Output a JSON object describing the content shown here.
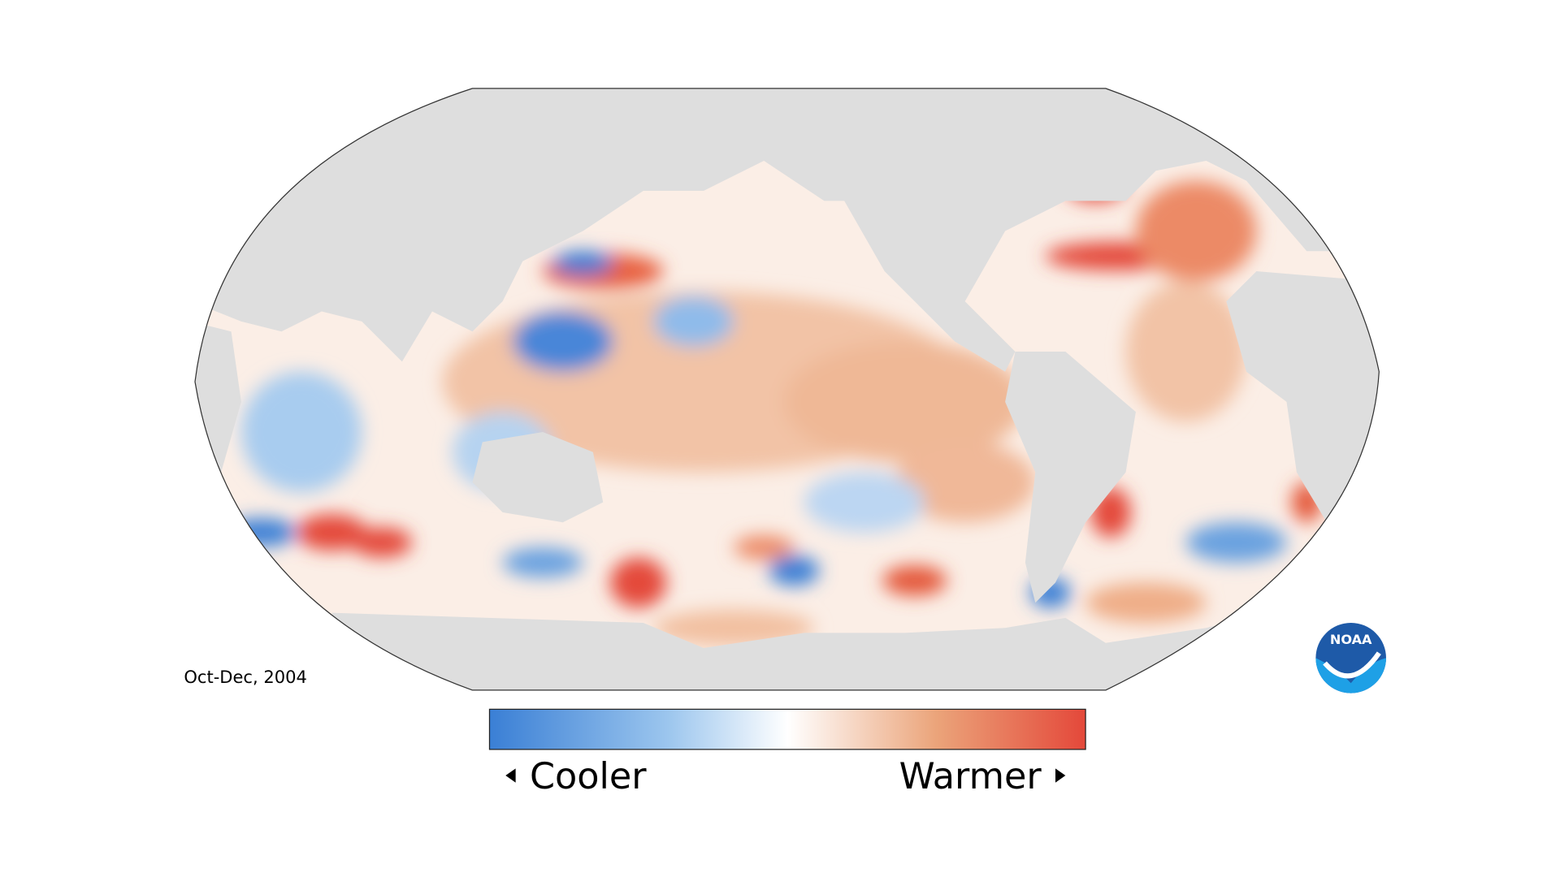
{
  "date_label": "Oct-Dec, 2004",
  "legend": {
    "low": "Cooler",
    "high": "Warmer"
  },
  "logo": "NOAA"
}
